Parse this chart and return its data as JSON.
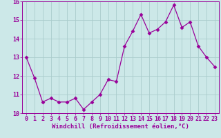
{
  "x": [
    0,
    1,
    2,
    3,
    4,
    5,
    6,
    7,
    8,
    9,
    10,
    11,
    12,
    13,
    14,
    15,
    16,
    17,
    18,
    19,
    20,
    21,
    22,
    23
  ],
  "y": [
    13.0,
    11.9,
    10.6,
    10.8,
    10.6,
    10.6,
    10.8,
    10.2,
    10.6,
    11.0,
    11.8,
    11.7,
    13.6,
    14.4,
    15.3,
    14.3,
    14.5,
    14.9,
    15.8,
    14.6,
    14.9,
    13.6,
    13.0,
    12.5
  ],
  "line_color": "#990099",
  "marker": "D",
  "markersize": 2.5,
  "linewidth": 0.9,
  "background_color": "#cce8e8",
  "grid_color": "#aacccc",
  "xlabel": "Windchill (Refroidissement éolien,°C)",
  "xlabel_fontsize": 6.5,
  "tick_fontsize": 6.0,
  "ylim": [
    10,
    16
  ],
  "xlim": [
    -0.5,
    23.5
  ],
  "yticks": [
    10,
    11,
    12,
    13,
    14,
    15,
    16
  ],
  "xticks": [
    0,
    1,
    2,
    3,
    4,
    5,
    6,
    7,
    8,
    9,
    10,
    11,
    12,
    13,
    14,
    15,
    16,
    17,
    18,
    19,
    20,
    21,
    22,
    23
  ]
}
